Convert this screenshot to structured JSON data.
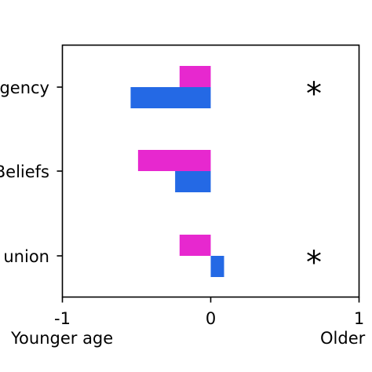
{
  "chart_data": {
    "type": "bar",
    "orientation": "horizontal",
    "categories": [
      "gency",
      "Beliefs",
      "union"
    ],
    "series": [
      {
        "color": "#e728cf",
        "values": [
          -0.21,
          -0.49,
          -0.21
        ]
      },
      {
        "color": "#2469e5",
        "values": [
          -0.54,
          -0.24,
          0.09
        ]
      }
    ],
    "xlim": [
      -1,
      1
    ],
    "xticks": [
      "-1",
      "0",
      "1"
    ],
    "x_end_labels": {
      "left": "Younger age",
      "right": "Older"
    },
    "significance_markers": [
      "*",
      "",
      "*"
    ],
    "grid": false
  }
}
